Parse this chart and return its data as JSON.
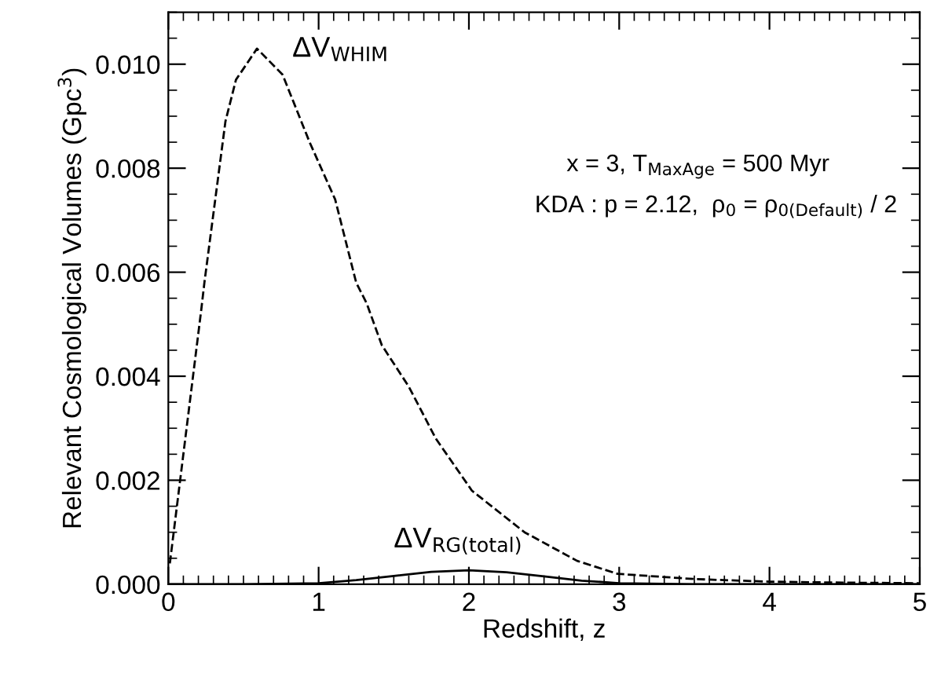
{
  "chart_data": {
    "type": "line",
    "xlabel": "Redshift, z",
    "ylabel": "Relevant Cosmological Volumes (Gpc$^{3}$)",
    "xlim": [
      0,
      5
    ],
    "xticks": [
      0,
      1,
      2,
      3,
      4,
      5
    ],
    "ylim": [
      0,
      0.011
    ],
    "yticks": [
      {
        "value": 0,
        "label": "0.000"
      },
      {
        "value": 0.002,
        "label": "0.002"
      },
      {
        "value": 0.004,
        "label": "0.004"
      },
      {
        "value": 0.006,
        "label": "0.006"
      },
      {
        "value": 0.008,
        "label": "0.008"
      },
      {
        "value": 0.01,
        "label": "0.010"
      }
    ],
    "grid": false,
    "legend": false,
    "series": [
      {
        "color": "#000000",
        "line_style": "dashed",
        "x": [
          0.01,
          0.07,
          0.22,
          0.24,
          0.38,
          0.45,
          0.59,
          0.76,
          0.94,
          1.11,
          1.25,
          1.32,
          1.42,
          1.6,
          1.78,
          2.02,
          2.37,
          2.72,
          2.99,
          3.5,
          4.0,
          4.5,
          5.0
        ],
        "values": [
          0.0004,
          0.0018,
          0.0053,
          0.0058,
          0.0089,
          0.0097,
          0.0103,
          0.0098,
          0.0085,
          0.0074,
          0.0058,
          0.0054,
          0.0046,
          0.0038,
          0.0028,
          0.0018,
          0.001,
          0.00045,
          0.0002,
          0.0001,
          5e-05,
          3e-05,
          2e-05
        ]
      },
      {
        "color": "#000000",
        "line_style": "solid",
        "x": [
          0,
          0.5,
          1.0,
          1.25,
          1.5,
          1.75,
          2.0,
          2.25,
          2.5,
          2.75,
          3.0,
          3.5,
          4.0,
          5.0
        ],
        "values": [
          0,
          0,
          2e-05,
          8e-05,
          0.00016,
          0.00024,
          0.00027,
          0.00023,
          0.00015,
          7e-05,
          2e-05,
          0,
          0,
          0
        ]
      }
    ],
    "annotations": [
      "ΔV$_{WHIM}$",
      "ΔV$_{RG(total)}$",
      "x = 3, T$_{MaxAge}$ = 500 Myr",
      "KDA : p = 2.12,  ρ$_{0}$ = ρ$_{0(Default)}$ / 2"
    ]
  }
}
